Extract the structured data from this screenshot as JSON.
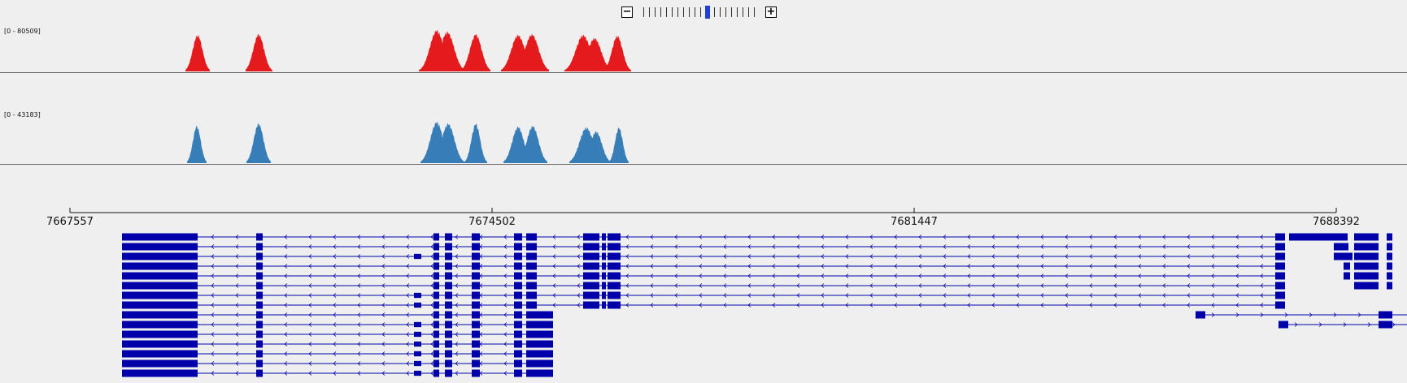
{
  "zoom": {
    "minus_label": "−",
    "plus_label": "+",
    "levels": 20,
    "selected_level": 11
  },
  "tracks": [
    {
      "range_label": "[0 - 80509]",
      "color": "#e41a1c"
    },
    {
      "range_label": "[0 - 43183]",
      "color": "#377eb8"
    }
  ],
  "ruler": {
    "ticks": [
      "7667557",
      "7674502",
      "7681447",
      "7688392"
    ]
  },
  "colors": {
    "gene": "#0000aa",
    "background": "#efefef"
  }
}
